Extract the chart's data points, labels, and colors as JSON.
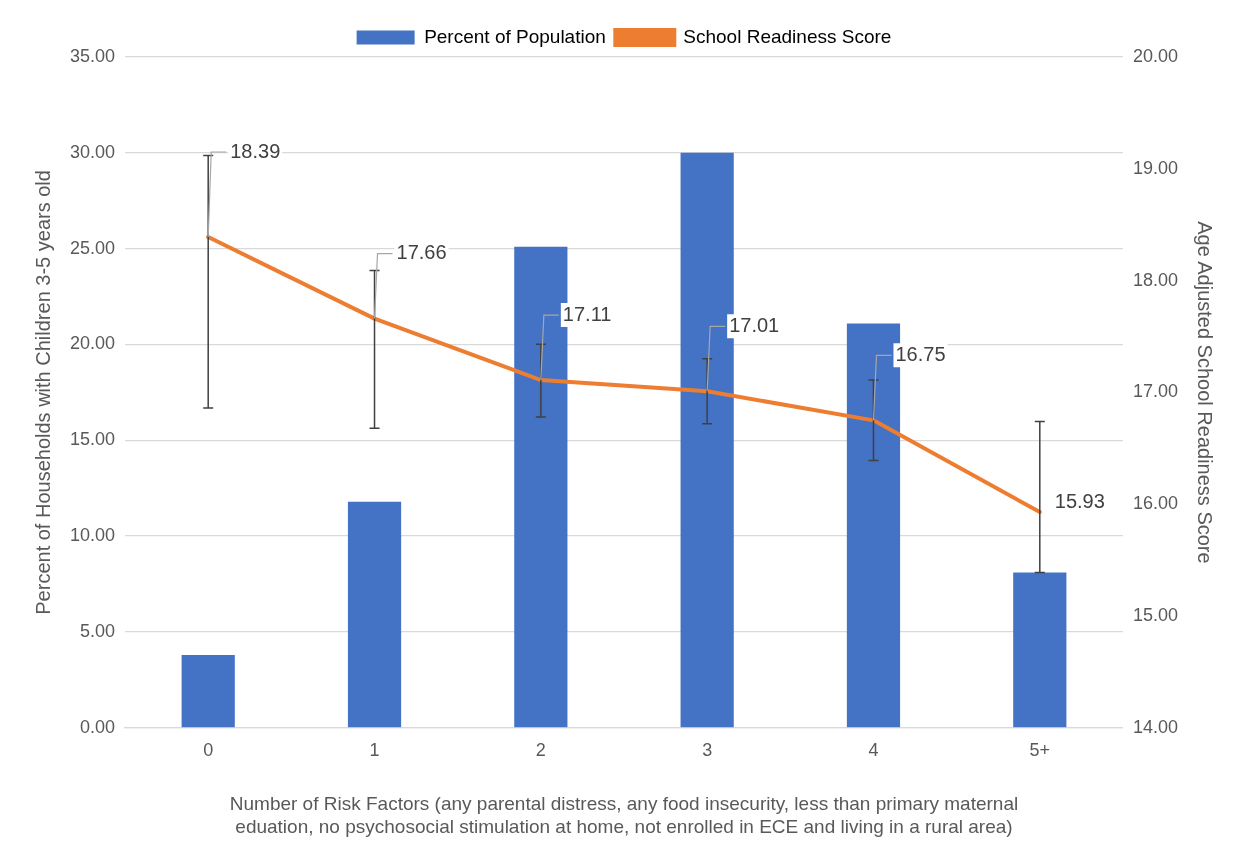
{
  "chart_data": {
    "type": "bar",
    "categories": [
      "0",
      "1",
      "2",
      "3",
      "4",
      "5+"
    ],
    "xlabel": "Number of Risk Factors (any parental distress, any food insecurity, less than primary maternal eduation, no psychosocial stimulation at home, not enrolled in ECE and living in a rural area)",
    "ylabel": "Percent of Households with Children 3-5 years old",
    "y2label": "Age Adjusted School Readiness Score",
    "series": [
      {
        "name": "Percent of Population",
        "color": "#4472c4",
        "values": [
          3.8,
          11.8,
          25.1,
          30.0,
          21.1,
          8.1
        ]
      },
      {
        "name": "School Readiness Score",
        "type": "line",
        "axis": "y2",
        "color": "#ed7d31",
        "values": [
          18.39,
          17.66,
          17.11,
          17.01,
          16.75,
          15.93
        ],
        "value_labels": [
          "18.39",
          "17.66",
          "17.11",
          "17.01",
          "16.75",
          "15.93"
        ],
        "errors": [
          [
            16.86,
            19.12
          ],
          [
            16.68,
            18.09
          ],
          [
            16.78,
            17.43
          ],
          [
            16.72,
            17.3
          ],
          [
            16.39,
            17.11
          ],
          [
            15.39,
            16.74
          ]
        ],
        "marker": "none",
        "line_style": "solid"
      }
    ],
    "ylim": [
      0,
      35
    ],
    "yticks": [
      {
        "value": 0,
        "label": "0.00"
      },
      {
        "value": 5,
        "label": "5.00"
      },
      {
        "value": 10,
        "label": "10.00"
      },
      {
        "value": 15,
        "label": "15.00"
      },
      {
        "value": 20,
        "label": "20.00"
      },
      {
        "value": 25,
        "label": "25.00"
      },
      {
        "value": 30,
        "label": "30.00"
      },
      {
        "value": 35,
        "label": "35.00"
      }
    ],
    "y2lim": [
      14,
      20
    ],
    "y2ticks": [
      {
        "value": 14,
        "label": "14.00"
      },
      {
        "value": 15,
        "label": "15.00"
      },
      {
        "value": 16,
        "label": "16.00"
      },
      {
        "value": 17,
        "label": "17.00"
      },
      {
        "value": 18,
        "label": "18.00"
      },
      {
        "value": 19,
        "label": "19.00"
      },
      {
        "value": 20,
        "label": "20.00"
      }
    ],
    "grid": "y",
    "legend": "top"
  }
}
